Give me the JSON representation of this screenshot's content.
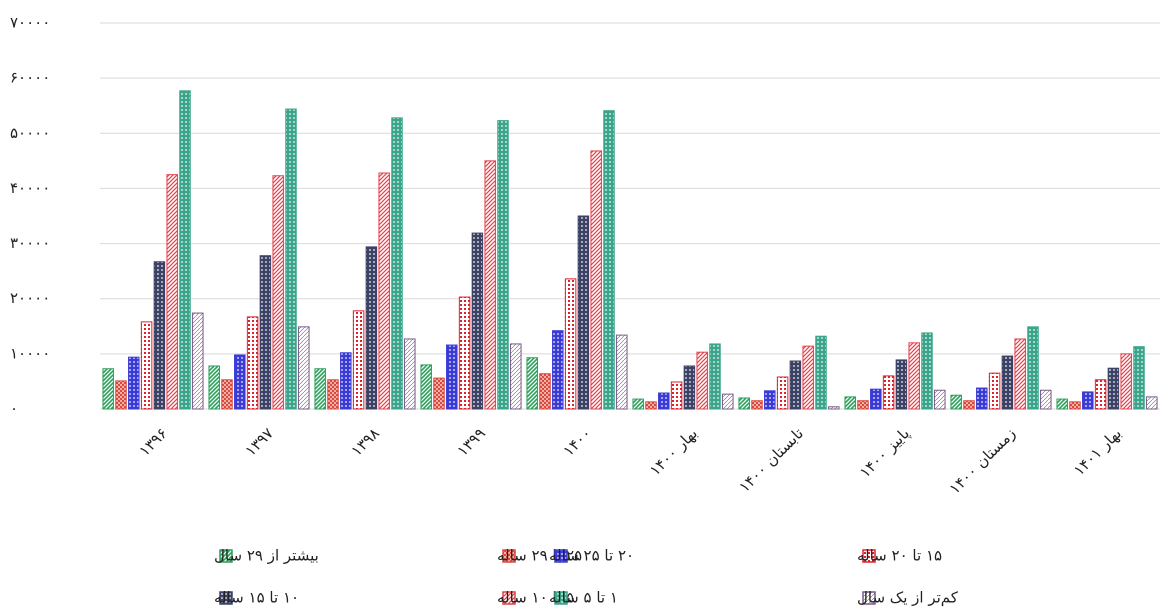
{
  "chart_data": {
    "type": "bar",
    "categories": [
      "۱۳۹۶",
      "۱۳۹۷",
      "۱۳۹۸",
      "۱۳۹۹",
      "۱۴۰۰",
      "بهار ۱۴۰۰",
      "تابستان ۱۴۰۰",
      "پاییز ۱۴۰۰",
      "زمستان ۱۴۰۰",
      "بهار ۱۴۰۱"
    ],
    "series": [
      {
        "name": "بیشتر از ۲۹ سال",
        "color": "#2e9e5b",
        "values": [
          7300,
          7800,
          7300,
          8000,
          9300,
          1800,
          2000,
          2200,
          2500,
          1800
        ]
      },
      {
        "name": "۲۵ تا ۲۹ ساله",
        "color": "#d9493c",
        "values": [
          5100,
          5300,
          5300,
          5600,
          6400,
          1300,
          1500,
          1500,
          1500,
          1300
        ]
      },
      {
        "name": "۲۰ تا ۲۵ ساله",
        "color": "#3a3ad6",
        "values": [
          9400,
          9800,
          10200,
          11600,
          14200,
          2900,
          3300,
          3600,
          3800,
          3100
        ]
      },
      {
        "name": "۱۵ تا ۲۰ ساله",
        "color": "#e0202a",
        "values": [
          15800,
          16700,
          17800,
          20300,
          23600,
          4900,
          5800,
          6000,
          6500,
          5300
        ]
      },
      {
        "name": "۱۰ تا ۱۵ ساله",
        "color": "#3b4266",
        "values": [
          26700,
          27800,
          29400,
          31900,
          35000,
          7800,
          8700,
          8900,
          9600,
          7400
        ]
      },
      {
        "name": "۵ تا ۱۰ ساله",
        "color": "#e4414b",
        "values": [
          42500,
          42300,
          42800,
          45000,
          46800,
          10300,
          11400,
          12000,
          12700,
          10000
        ]
      },
      {
        "name": "۱ تا ۵ ساله",
        "color": "#3aa58a",
        "values": [
          57700,
          54400,
          52800,
          52300,
          54100,
          11800,
          13200,
          13800,
          14900,
          11300
        ]
      },
      {
        "name": "کم‌تر از یک سال",
        "color": "#7a5a8a",
        "values": [
          17400,
          14900,
          12700,
          11800,
          13400,
          2700,
          400,
          3400,
          3400,
          2200
        ]
      }
    ],
    "ylim": [
      0,
      70000
    ],
    "yticks": [
      {
        "value": 0,
        "label": "۰"
      },
      {
        "value": 10000,
        "label": "۱۰۰۰۰"
      },
      {
        "value": 20000,
        "label": "۲۰۰۰۰"
      },
      {
        "value": 30000,
        "label": "۳۰۰۰۰"
      },
      {
        "value": 40000,
        "label": "۴۰۰۰۰"
      },
      {
        "value": 50000,
        "label": "۵۰۰۰۰"
      },
      {
        "value": 60000,
        "label": "۶۰۰۰۰"
      },
      {
        "value": 70000,
        "label": "۷۰۰۰۰"
      }
    ],
    "grid": true,
    "legend": "bottom"
  }
}
